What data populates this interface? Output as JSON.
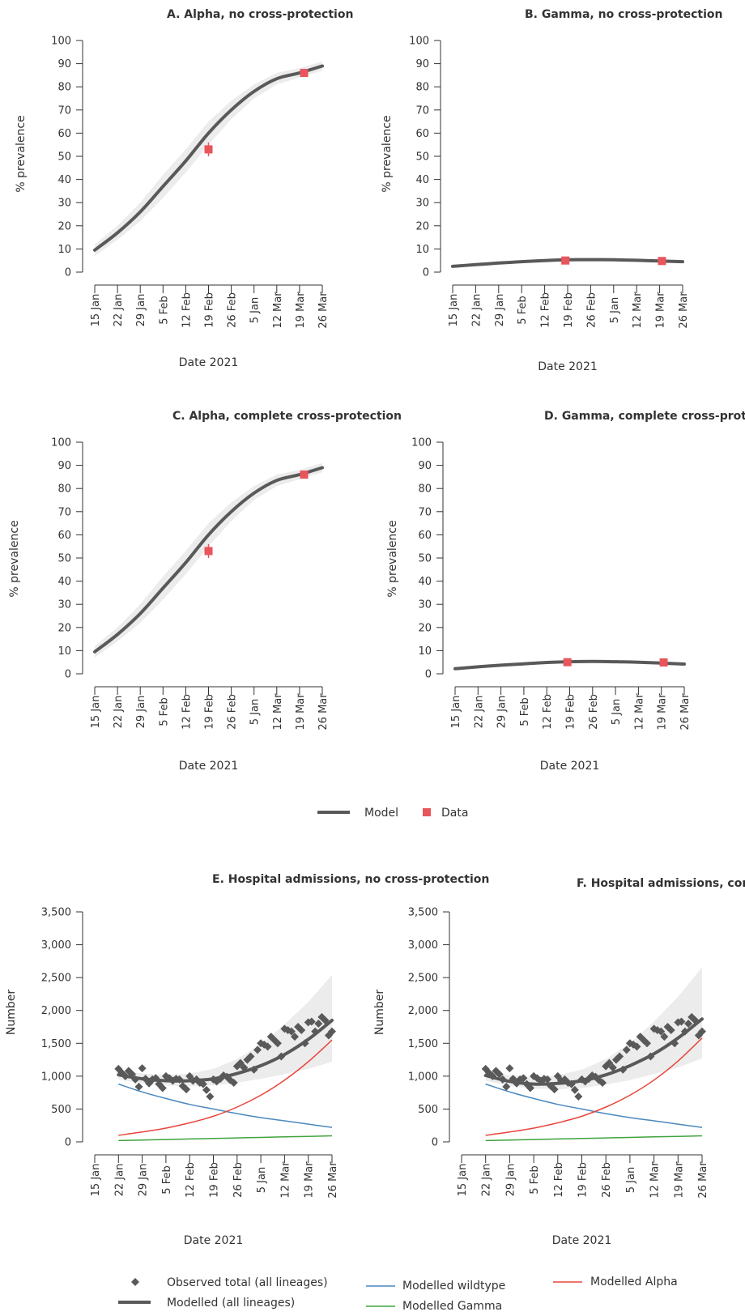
{
  "chart_data": [
    {
      "id": "A",
      "type": "line",
      "title": "A. Alpha, no cross-protection",
      "xlabel": "Date 2021",
      "ylabel": "% prevalence",
      "x_ticks": [
        "15 Jan",
        "22 Jan",
        "29 Jan",
        "5 Feb",
        "12 Feb",
        "19 Feb",
        "26 Feb",
        "5 Jan",
        "12 Mar",
        "19 Mar",
        "26 Mar"
      ],
      "y_ticks": [
        "0",
        "10",
        "20",
        "30",
        "40",
        "50",
        "60",
        "70",
        "80",
        "90",
        "100"
      ],
      "ylim": [
        0,
        100
      ],
      "series": [
        {
          "name": "Model",
          "x": [
            0,
            1,
            2,
            3,
            4,
            5,
            6,
            7,
            8,
            9,
            10
          ],
          "y": [
            9.5,
            17,
            26,
            37,
            48,
            60,
            70,
            78,
            83.5,
            86,
            89
          ],
          "lower": [
            7,
            14,
            22,
            32,
            43,
            55,
            66,
            75,
            81,
            84,
            87
          ],
          "upper": [
            12,
            20,
            30,
            42,
            53,
            65,
            74,
            81,
            86,
            88,
            91
          ]
        },
        {
          "name": "Data",
          "points": [
            {
              "x": 5,
              "y": 53,
              "err": 3
            },
            {
              "x": 9.2,
              "y": 86,
              "err": 1
            }
          ]
        }
      ]
    },
    {
      "id": "B",
      "type": "line",
      "title": "B. Gamma, no cross-protection",
      "xlabel": "Date 2021",
      "ylabel": "% prevalence",
      "x_ticks": [
        "15 Jan",
        "22 Jan",
        "29 Jan",
        "5 Feb",
        "12 Feb",
        "19 Feb",
        "26 Feb",
        "5 Jan",
        "12 Mar",
        "19 Mar",
        "26 Mar"
      ],
      "y_ticks": [
        "0",
        "10",
        "20",
        "30",
        "40",
        "50",
        "60",
        "70",
        "80",
        "90",
        "100"
      ],
      "ylim": [
        0,
        100
      ],
      "series": [
        {
          "name": "Model",
          "x": [
            0,
            1,
            2,
            3,
            4,
            5,
            6,
            7,
            8,
            9,
            10
          ],
          "y": [
            2.5,
            3.2,
            3.9,
            4.5,
            5,
            5.3,
            5.4,
            5.3,
            5.1,
            4.8,
            4.5
          ],
          "lower": [
            2,
            2.7,
            3.4,
            4,
            4.5,
            4.8,
            4.9,
            4.8,
            4.6,
            4.3,
            4
          ],
          "upper": [
            3,
            3.7,
            4.4,
            5,
            5.5,
            5.8,
            5.9,
            5.8,
            5.6,
            5.3,
            5
          ]
        },
        {
          "name": "Data",
          "points": [
            {
              "x": 4.9,
              "y": 5,
              "err": 0.5
            },
            {
              "x": 9.1,
              "y": 4.8,
              "err": 0.5
            }
          ]
        }
      ]
    },
    {
      "id": "C",
      "type": "line",
      "title": "C. Alpha, complete cross-protection",
      "xlabel": "Date 2021",
      "ylabel": "% prevalence",
      "x_ticks": [
        "15 Jan",
        "22 Jan",
        "29 Jan",
        "5 Feb",
        "12 Feb",
        "19 Feb",
        "26 Feb",
        "5 Jan",
        "12 Mar",
        "19 Mar",
        "26 Mar"
      ],
      "y_ticks": [
        "0",
        "10",
        "20",
        "30",
        "40",
        "50",
        "60",
        "70",
        "80",
        "90",
        "100"
      ],
      "ylim": [
        0,
        100
      ],
      "series": [
        {
          "name": "Model",
          "x": [
            0,
            1,
            2,
            3,
            4,
            5,
            6,
            7,
            8,
            9,
            10
          ],
          "y": [
            9.5,
            17,
            26,
            37,
            48,
            60,
            70,
            78,
            83.5,
            86,
            89
          ],
          "lower": [
            7,
            14,
            22,
            32,
            43,
            55,
            66,
            75,
            81,
            84,
            87
          ],
          "upper": [
            12,
            20,
            30,
            42,
            53,
            65,
            74,
            81,
            86,
            88,
            91
          ]
        },
        {
          "name": "Data",
          "points": [
            {
              "x": 5,
              "y": 53,
              "err": 3
            },
            {
              "x": 9.2,
              "y": 86,
              "err": 1
            }
          ]
        }
      ]
    },
    {
      "id": "D",
      "type": "line",
      "title": "D. Gamma, complete cross-protection",
      "xlabel": "Date 2021",
      "ylabel": "% prevalence",
      "x_ticks": [
        "15 Jan",
        "22 Jan",
        "29 Jan",
        "5 Feb",
        "12 Feb",
        "19 Feb",
        "26 Feb",
        "5 Jan",
        "12 Mar",
        "19 Mar",
        "26 Mar"
      ],
      "y_ticks": [
        "0",
        "10",
        "20",
        "30",
        "40",
        "50",
        "60",
        "70",
        "80",
        "90",
        "100"
      ],
      "ylim": [
        0,
        100
      ],
      "series": [
        {
          "name": "Model",
          "x": [
            0,
            1,
            2,
            3,
            4,
            5,
            6,
            7,
            8,
            9,
            10
          ],
          "y": [
            2.2,
            3,
            3.7,
            4.3,
            4.9,
            5.2,
            5.3,
            5.2,
            5,
            4.6,
            4.2
          ],
          "lower": [
            1.7,
            2.5,
            3.2,
            3.8,
            4.4,
            4.7,
            4.8,
            4.7,
            4.5,
            4.1,
            3.7
          ],
          "upper": [
            2.7,
            3.5,
            4.2,
            4.8,
            5.4,
            5.7,
            5.8,
            5.7,
            5.5,
            5.1,
            4.7
          ]
        },
        {
          "name": "Data",
          "points": [
            {
              "x": 4.9,
              "y": 5,
              "err": 0.5
            },
            {
              "x": 9.1,
              "y": 4.9,
              "err": 0.5
            }
          ]
        }
      ]
    },
    {
      "id": "E",
      "type": "line",
      "title": "E. Hospital admissions, no cross-protection",
      "xlabel": "Date 2021",
      "ylabel": "Number",
      "x_ticks": [
        "15 Jan",
        "22 Jan",
        "29 Jan",
        "5 Feb",
        "12 Feb",
        "19 Feb",
        "26 Feb",
        "5 Jan",
        "12 Mar",
        "19 Mar",
        "26 Mar"
      ],
      "y_ticks": [
        "0",
        "500",
        "1,000",
        "1,500",
        "2,000",
        "2,500",
        "3,000",
        "3,500"
      ],
      "ylim": [
        0,
        3500
      ],
      "series": [
        {
          "name": "Modelled (all lineages)",
          "x": [
            1,
            2,
            3,
            4,
            5,
            6,
            7,
            8,
            9,
            10
          ],
          "y": [
            1020,
            960,
            930,
            930,
            960,
            1040,
            1160,
            1330,
            1560,
            1850
          ],
          "lower": [
            950,
            890,
            860,
            850,
            860,
            900,
            960,
            1030,
            1110,
            1220
          ],
          "upper": [
            1100,
            1040,
            1020,
            1040,
            1110,
            1260,
            1480,
            1790,
            2130,
            2540
          ]
        },
        {
          "name": "Modelled wildtype",
          "x": [
            1,
            2,
            3,
            4,
            5,
            6,
            7,
            8,
            9,
            10
          ],
          "y": [
            880,
            760,
            660,
            570,
            500,
            430,
            370,
            320,
            270,
            220
          ]
        },
        {
          "name": "Modelled Alpha",
          "x": [
            1,
            2,
            3,
            4,
            5,
            6,
            7,
            8,
            9,
            10
          ],
          "y": [
            100,
            150,
            210,
            290,
            390,
            530,
            710,
            940,
            1220,
            1550
          ]
        },
        {
          "name": "Modelled Gamma",
          "x": [
            1,
            2,
            3,
            4,
            5,
            6,
            7,
            8,
            9,
            10
          ],
          "y": [
            20,
            28,
            36,
            44,
            52,
            60,
            68,
            76,
            84,
            92
          ]
        },
        {
          "name": "Observed total (all lineages)",
          "x": [
            1,
            1.14,
            1.29,
            1.43,
            1.57,
            1.71,
            1.86,
            2,
            2.14,
            2.29,
            2.43,
            2.57,
            2.71,
            2.86,
            3,
            3.14,
            3.29,
            3.43,
            3.57,
            3.71,
            3.86,
            4,
            4.14,
            4.29,
            4.43,
            4.57,
            4.71,
            4.86,
            5,
            5.14,
            5.29,
            5.43,
            5.57,
            5.71,
            5.86,
            6,
            6.14,
            6.29,
            6.43,
            6.57,
            6.71,
            6.86,
            7,
            7.14,
            7.29,
            7.43,
            7.57,
            7.71,
            7.86,
            8,
            8.14,
            8.29,
            8.43,
            8.57,
            8.71,
            8.86,
            9,
            9.14,
            9.29,
            9.43,
            9.57,
            9.71,
            9.86,
            10
          ],
          "y": [
            1110,
            1050,
            1000,
            1080,
            1030,
            950,
            840,
            1120,
            960,
            890,
            950,
            970,
            880,
            820,
            1000,
            970,
            930,
            960,
            950,
            850,
            800,
            1000,
            930,
            950,
            900,
            880,
            790,
            690,
            950,
            920,
            960,
            1010,
            990,
            940,
            900,
            1150,
            1200,
            1130,
            1250,
            1300,
            1100,
            1400,
            1500,
            1480,
            1450,
            1600,
            1550,
            1500,
            1300,
            1720,
            1700,
            1680,
            1600,
            1750,
            1700,
            1500,
            1820,
            1830,
            1680,
            1800,
            1900,
            1850,
            1620,
            1680
          ]
        }
      ]
    },
    {
      "id": "F",
      "type": "line",
      "title": "F. Hospital admissions, complete cross-protection",
      "xlabel": "Date 2021",
      "ylabel": "Number",
      "x_ticks": [
        "15 Jan",
        "22 Jan",
        "29 Jan",
        "5 Feb",
        "12 Feb",
        "19 Feb",
        "26 Feb",
        "5 Jan",
        "12 Mar",
        "19 Mar",
        "26 Mar"
      ],
      "y_ticks": [
        "0",
        "500",
        "1,000",
        "1,500",
        "2,000",
        "2,500",
        "3,000",
        "3,500"
      ],
      "ylim": [
        0,
        3500
      ],
      "series": [
        {
          "name": "Modelled (all lineages)",
          "x": [
            1,
            2,
            3,
            4,
            5,
            6,
            7,
            8,
            9,
            10
          ],
          "y": [
            1010,
            920,
            880,
            890,
            930,
            1020,
            1160,
            1340,
            1580,
            1870
          ],
          "lower": [
            930,
            850,
            810,
            800,
            820,
            870,
            940,
            1030,
            1130,
            1270
          ],
          "upper": [
            1090,
            1010,
            990,
            1010,
            1100,
            1260,
            1500,
            1830,
            2210,
            2660
          ]
        },
        {
          "name": "Modelled wildtype",
          "x": [
            1,
            2,
            3,
            4,
            5,
            6,
            7,
            8,
            9,
            10
          ],
          "y": [
            880,
            760,
            660,
            570,
            500,
            430,
            370,
            320,
            270,
            220
          ]
        },
        {
          "name": "Modelled Alpha",
          "x": [
            1,
            2,
            3,
            4,
            5,
            6,
            7,
            8,
            9,
            10
          ],
          "y": [
            100,
            150,
            210,
            290,
            390,
            530,
            710,
            940,
            1230,
            1580
          ]
        },
        {
          "name": "Modelled Gamma",
          "x": [
            1,
            2,
            3,
            4,
            5,
            6,
            7,
            8,
            9,
            10
          ],
          "y": [
            20,
            28,
            36,
            44,
            52,
            60,
            68,
            76,
            84,
            92
          ]
        },
        {
          "name": "Observed total (all lineages)",
          "x": [
            1,
            1.14,
            1.29,
            1.43,
            1.57,
            1.71,
            1.86,
            2,
            2.14,
            2.29,
            2.43,
            2.57,
            2.71,
            2.86,
            3,
            3.14,
            3.29,
            3.43,
            3.57,
            3.71,
            3.86,
            4,
            4.14,
            4.29,
            4.43,
            4.57,
            4.71,
            4.86,
            5,
            5.14,
            5.29,
            5.43,
            5.57,
            5.71,
            5.86,
            6,
            6.14,
            6.29,
            6.43,
            6.57,
            6.71,
            6.86,
            7,
            7.14,
            7.29,
            7.43,
            7.57,
            7.71,
            7.86,
            8,
            8.14,
            8.29,
            8.43,
            8.57,
            8.71,
            8.86,
            9,
            9.14,
            9.29,
            9.43,
            9.57,
            9.71,
            9.86,
            10
          ],
          "y": [
            1110,
            1050,
            1000,
            1080,
            1030,
            950,
            840,
            1120,
            960,
            890,
            950,
            970,
            880,
            820,
            1000,
            970,
            930,
            960,
            950,
            850,
            800,
            1000,
            930,
            950,
            900,
            880,
            790,
            690,
            950,
            920,
            960,
            1010,
            990,
            940,
            900,
            1150,
            1200,
            1130,
            1250,
            1300,
            1100,
            1400,
            1500,
            1480,
            1450,
            1600,
            1550,
            1500,
            1300,
            1720,
            1700,
            1680,
            1600,
            1750,
            1700,
            1500,
            1820,
            1830,
            1680,
            1800,
            1900,
            1850,
            1620,
            1680
          ]
        }
      ]
    }
  ],
  "legend_top": {
    "model": "Model",
    "data": "Data"
  },
  "legend_bottom": {
    "observed": "Observed total (all lineages)",
    "modelled_all": "Modelled (all lineages)",
    "wildtype": "Modelled wildtype",
    "gamma": "Modelled Gamma",
    "alpha": "Modelled Alpha"
  },
  "colors": {
    "model": "#595959",
    "data": "#e8555b",
    "band": "#ececec",
    "wildtype": "#4a88bd",
    "alpha": "#e8453c",
    "gamma": "#3fa43f",
    "observed": "#595959",
    "axis": "#333333"
  }
}
